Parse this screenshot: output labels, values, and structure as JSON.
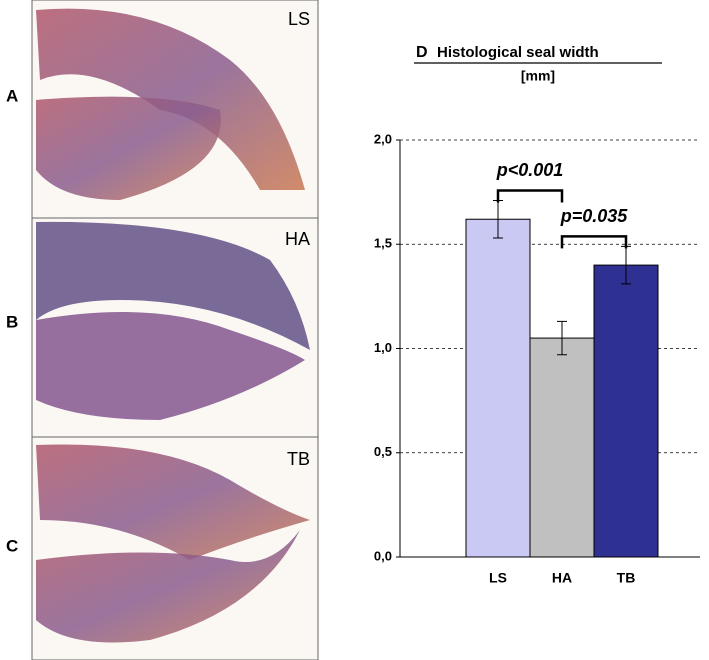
{
  "panels": [
    {
      "label": "A",
      "image_label": "LS"
    },
    {
      "label": "B",
      "image_label": "HA"
    },
    {
      "label": "C",
      "image_label": "TB"
    }
  ],
  "chart_data": {
    "type": "bar",
    "panel": "D",
    "title": "Histological seal width",
    "subtitle": "[mm]",
    "categories": [
      "LS",
      "HA",
      "TB"
    ],
    "values": [
      1.62,
      1.05,
      1.4
    ],
    "errors": [
      0.09,
      0.08,
      0.09
    ],
    "colors": [
      "#c9c9f4",
      "#c0c0c0",
      "#2e3192"
    ],
    "ylim": [
      0,
      2
    ],
    "yticks": [
      {
        "value": 0,
        "label": "0,0"
      },
      {
        "value": 0.5,
        "label": "0,5"
      },
      {
        "value": 1,
        "label": "1,0"
      },
      {
        "value": 1.5,
        "label": "1,5"
      },
      {
        "value": 2,
        "label": "2,0"
      }
    ],
    "grid": true,
    "annotations": [
      "p<0.001",
      "p=0.035"
    ]
  }
}
